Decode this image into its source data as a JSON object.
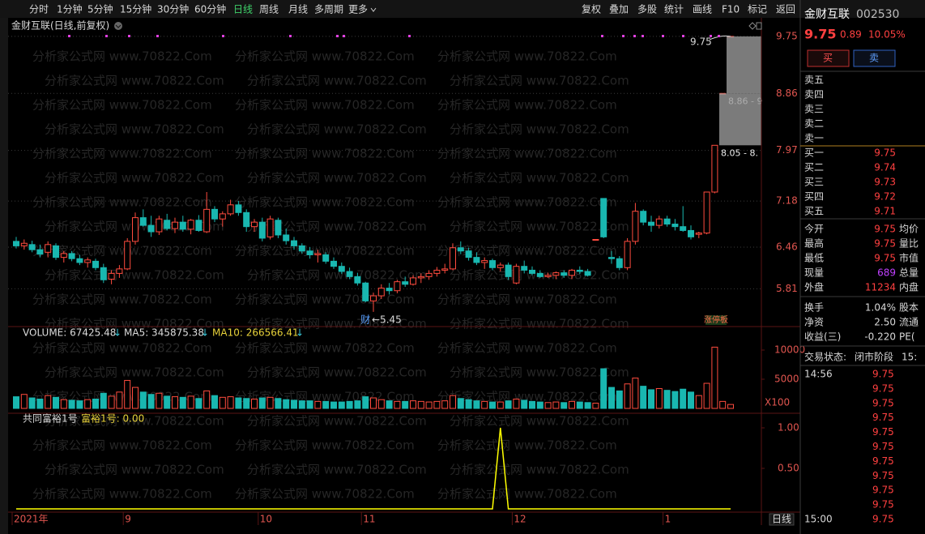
{
  "toolbar": {
    "periods": [
      "分时",
      "1分钟",
      "5分钟",
      "15分钟",
      "30分钟",
      "60分钟",
      "日线",
      "周线",
      "月线",
      "多周期",
      "更多"
    ],
    "tools": [
      "复权",
      "叠加",
      "多股",
      "统计",
      "画线",
      "F10",
      "标记",
      "返回"
    ]
  },
  "watermark": "分析家公式网 www.70822.Com",
  "chart_data": [
    {
      "type": "candlestick",
      "title": "金财互联(日线,前复权)",
      "ylim": [
        5.22,
        10.04
      ],
      "yticks": [
        9.75,
        8.86,
        7.97,
        7.18,
        6.46,
        5.81
      ],
      "grid": true,
      "up_color": "#ff4b3e",
      "down_color": "#19b7b0",
      "categories": [
        "2021年",
        null,
        null,
        null,
        null,
        null,
        null,
        null,
        null,
        null,
        null,
        null,
        null,
        null,
        "9",
        null,
        null,
        null,
        null,
        null,
        null,
        null,
        null,
        null,
        null,
        null,
        null,
        null,
        null,
        null,
        null,
        "10",
        null,
        null,
        null,
        null,
        null,
        null,
        null,
        null,
        null,
        null,
        null,
        null,
        "11",
        null,
        null,
        null,
        null,
        null,
        null,
        null,
        null,
        null,
        null,
        null,
        null,
        null,
        null,
        null,
        null,
        null,
        null,
        "12",
        null,
        null,
        null,
        null,
        null,
        null,
        null,
        null,
        null,
        null,
        null,
        null,
        null,
        null,
        null,
        null,
        null,
        null,
        "1",
        null,
        null,
        null,
        null,
        null,
        null,
        null,
        null
      ],
      "candles": [
        [
          6.55,
          6.62,
          6.44,
          6.48
        ],
        [
          6.48,
          6.58,
          6.42,
          6.52
        ],
        [
          6.5,
          6.56,
          6.38,
          6.42
        ],
        [
          6.42,
          6.5,
          6.3,
          6.35
        ],
        [
          6.38,
          6.55,
          6.3,
          6.5
        ],
        [
          6.48,
          6.52,
          6.26,
          6.3
        ],
        [
          6.3,
          6.4,
          6.22,
          6.36
        ],
        [
          6.36,
          6.4,
          6.24,
          6.28
        ],
        [
          6.28,
          6.34,
          6.18,
          6.22
        ],
        [
          6.22,
          6.3,
          6.14,
          6.26
        ],
        [
          6.24,
          6.28,
          6.1,
          6.14
        ],
        [
          6.14,
          6.2,
          5.9,
          5.95
        ],
        [
          5.96,
          6.1,
          5.88,
          6.05
        ],
        [
          6.05,
          6.18,
          5.98,
          6.12
        ],
        [
          6.12,
          6.6,
          6.1,
          6.55
        ],
        [
          6.55,
          7.0,
          6.5,
          6.92
        ],
        [
          6.92,
          7.05,
          6.78,
          6.8
        ],
        [
          6.8,
          6.95,
          6.62,
          6.7
        ],
        [
          6.7,
          6.95,
          6.65,
          6.9
        ],
        [
          6.88,
          6.98,
          6.72,
          6.75
        ],
        [
          6.75,
          6.92,
          6.68,
          6.85
        ],
        [
          6.85,
          6.95,
          6.7,
          6.74
        ],
        [
          6.74,
          6.9,
          6.66,
          6.88
        ],
        [
          6.88,
          6.96,
          6.7,
          6.72
        ],
        [
          6.7,
          7.32,
          6.68,
          7.05
        ],
        [
          7.05,
          7.1,
          6.85,
          6.9
        ],
        [
          6.9,
          7.02,
          6.78,
          6.98
        ],
        [
          6.98,
          7.2,
          6.95,
          7.12
        ],
        [
          7.12,
          7.18,
          6.95,
          7.0
        ],
        [
          7.0,
          7.05,
          6.7,
          6.78
        ],
        [
          6.78,
          6.9,
          6.7,
          6.85
        ],
        [
          6.85,
          6.92,
          6.55,
          6.6
        ],
        [
          6.62,
          6.95,
          6.58,
          6.9
        ],
        [
          6.88,
          6.92,
          6.6,
          6.65
        ],
        [
          6.65,
          6.75,
          6.5,
          6.56
        ],
        [
          6.56,
          6.62,
          6.42,
          6.48
        ],
        [
          6.48,
          6.52,
          6.36,
          6.4
        ],
        [
          6.4,
          6.46,
          6.28,
          6.34
        ],
        [
          6.34,
          6.42,
          6.22,
          6.36
        ],
        [
          6.34,
          6.38,
          6.2,
          6.24
        ],
        [
          6.24,
          6.3,
          6.12,
          6.16
        ],
        [
          6.16,
          6.22,
          6.04,
          6.08
        ],
        [
          6.08,
          6.14,
          5.96,
          6.0
        ],
        [
          6.0,
          6.06,
          5.86,
          5.9
        ],
        [
          5.9,
          5.92,
          5.6,
          5.62
        ],
        [
          5.62,
          5.75,
          5.45,
          5.7
        ],
        [
          5.7,
          5.88,
          5.65,
          5.82
        ],
        [
          5.82,
          5.9,
          5.72,
          5.78
        ],
        [
          5.78,
          5.95,
          5.74,
          5.92
        ],
        [
          5.92,
          6.0,
          5.84,
          5.88
        ],
        [
          5.88,
          6.02,
          5.86,
          5.98
        ],
        [
          5.98,
          6.05,
          5.9,
          6.0
        ],
        [
          6.0,
          6.1,
          5.95,
          6.05
        ],
        [
          6.05,
          6.15,
          6.0,
          6.1
        ],
        [
          6.1,
          6.2,
          6.05,
          6.12
        ],
        [
          6.12,
          6.52,
          6.1,
          6.45
        ],
        [
          6.45,
          6.55,
          6.35,
          6.4
        ],
        [
          6.4,
          6.45,
          6.25,
          6.3
        ],
        [
          6.3,
          6.38,
          6.18,
          6.22
        ],
        [
          6.22,
          6.3,
          6.12,
          6.25
        ],
        [
          6.25,
          6.28,
          6.1,
          6.14
        ],
        [
          6.14,
          6.22,
          6.08,
          6.18
        ],
        [
          6.18,
          6.22,
          5.95,
          6.0
        ],
        [
          5.9,
          6.2,
          5.88,
          6.16
        ],
        [
          6.16,
          6.25,
          6.05,
          6.1
        ],
        [
          6.1,
          6.16,
          6.02,
          6.05
        ],
        [
          6.05,
          6.1,
          5.98,
          6.0
        ],
        [
          6.0,
          6.06,
          5.98,
          6.02
        ],
        [
          6.02,
          6.08,
          5.96,
          6.06
        ],
        [
          6.06,
          6.1,
          5.98,
          6.02
        ],
        [
          6.02,
          6.12,
          5.96,
          6.1
        ],
        [
          6.1,
          6.16,
          6.04,
          6.08
        ],
        [
          6.08,
          6.12,
          6.0,
          6.02
        ],
        [
          6.58,
          6.58,
          6.58,
          6.58
        ],
        [
          7.22,
          7.22,
          6.6,
          6.62
        ],
        [
          6.3,
          6.4,
          6.2,
          6.28
        ],
        [
          6.28,
          6.32,
          6.1,
          6.14
        ],
        [
          6.14,
          6.6,
          6.1,
          6.55
        ],
        [
          6.55,
          7.15,
          6.5,
          7.02
        ],
        [
          7.02,
          7.05,
          6.8,
          6.85
        ],
        [
          6.85,
          6.95,
          6.7,
          6.8
        ],
        [
          6.8,
          6.95,
          6.75,
          6.9
        ],
        [
          6.9,
          6.95,
          6.78,
          6.82
        ],
        [
          6.82,
          6.9,
          6.72,
          6.78
        ],
        [
          6.78,
          7.1,
          6.7,
          6.72
        ],
        [
          6.72,
          6.8,
          6.58,
          6.62
        ],
        [
          6.66,
          6.7,
          6.6,
          6.68
        ],
        [
          6.68,
          7.32,
          6.66,
          7.32
        ],
        [
          7.32,
          8.05,
          7.3,
          8.05
        ],
        [
          8.86,
          8.86,
          8.86,
          8.86
        ],
        [
          9.75,
          9.75,
          9.75,
          9.75
        ]
      ],
      "high_label": "9.75",
      "low_label": "←5.45",
      "event_label": "财",
      "badge": "涨停板",
      "gaps": [
        {
          "from": 8.86,
          "to": 9.75,
          "label": "8.86 - 9"
        },
        {
          "from": 8.05,
          "to": 8.86,
          "label": "8.05 - 8."
        }
      ]
    },
    {
      "type": "volume",
      "ylim": [
        0,
        13750
      ],
      "yticks": [
        10000,
        5000
      ],
      "unit": "X100",
      "header": [
        "VOLUME: 67425.48",
        "MA5: 345875.38",
        "MA10: 266566.41"
      ],
      "arrow": "↓",
      "values": [
        2000,
        2400,
        1800,
        1600,
        2200,
        1900,
        1500,
        1400,
        1300,
        1500,
        1600,
        2600,
        2100,
        2800,
        4800,
        3600,
        2800,
        2400,
        2600,
        2100,
        2000,
        1900,
        2100,
        1700,
        3000,
        2200,
        1900,
        2000,
        1800,
        1700,
        1600,
        1800,
        1900,
        1700,
        1500,
        1400,
        1300,
        1300,
        1200,
        1200,
        1100,
        1100,
        1200,
        1300,
        2000,
        1800,
        1500,
        1300,
        1200,
        1200,
        1300,
        1200,
        1100,
        1200,
        1300,
        2200,
        1700,
        1500,
        1300,
        1200,
        1100,
        1100,
        1300,
        1600,
        1400,
        1200,
        1100,
        1000,
        1100,
        1000,
        1200,
        1100,
        1000,
        900,
        6800,
        3600,
        3000,
        4200,
        5200,
        3800,
        3200,
        3400,
        3100,
        2900,
        3300,
        2800,
        2200,
        4300,
        10500,
        1200,
        674
      ]
    },
    {
      "type": "line",
      "title": "共同富裕1号",
      "value_text": "富裕1号: 0.00",
      "color": "#ffff00",
      "ylim": [
        0,
        1.16
      ],
      "yticks": [
        {
          "value": 1,
          "label": "1.00"
        },
        {
          "value": 0.5,
          "label": "0.50"
        }
      ],
      "values": [
        0,
        0,
        0,
        0,
        0,
        0,
        0,
        0,
        0,
        0,
        0,
        0,
        0,
        0,
        0,
        0,
        0,
        0,
        0,
        0,
        0,
        0,
        0,
        0,
        0,
        0,
        0,
        0,
        0,
        0,
        0,
        0,
        0,
        0,
        0,
        0,
        0,
        0,
        0,
        0,
        0,
        0,
        0,
        0,
        0,
        0,
        0,
        0,
        0,
        0,
        0,
        0,
        0,
        0,
        0,
        0,
        0,
        0,
        0,
        0,
        0,
        1,
        0,
        0,
        0,
        0,
        0,
        0,
        0,
        0,
        0,
        0,
        0,
        0,
        0,
        0,
        0,
        0,
        0,
        0,
        0,
        0,
        0,
        0,
        0,
        0,
        0,
        0,
        0,
        0,
        0
      ]
    }
  ],
  "period_button": "日线",
  "quote": {
    "name": "金财互联",
    "code": "002530",
    "price": "9.75",
    "change": "0.89",
    "change_pct": "10.05%",
    "buy": "买",
    "sell": "卖",
    "asks": [
      "卖五",
      "卖四",
      "卖三",
      "卖二",
      "卖一"
    ],
    "bids": [
      [
        "买一",
        "9.75"
      ],
      [
        "买二",
        "9.74"
      ],
      [
        "买三",
        "9.73"
      ],
      [
        "买四",
        "9.72"
      ],
      [
        "买五",
        "9.71"
      ]
    ],
    "stats": [
      [
        "今开",
        "9.75",
        "均价"
      ],
      [
        "最高",
        "9.75",
        "量比"
      ],
      [
        "最低",
        "9.75",
        "市值"
      ],
      [
        "现量",
        "689",
        "总量"
      ],
      [
        "外盘",
        "11234",
        "内盘"
      ]
    ],
    "stats2": [
      [
        "换手",
        "1.04%",
        "股本"
      ],
      [
        "净资",
        "2.50",
        "流通"
      ],
      [
        "收益(三)",
        "-0.220",
        "PE("
      ]
    ],
    "status": [
      "交易状态:",
      "闭市阶段",
      "15:"
    ],
    "ticks": [
      [
        "14:56",
        "9.75"
      ],
      [
        null,
        "9.75"
      ],
      [
        null,
        "9.75"
      ],
      [
        null,
        "9.75"
      ],
      [
        null,
        "9.75"
      ],
      [
        null,
        "9.75"
      ],
      [
        null,
        "9.75"
      ],
      [
        null,
        "9.75"
      ],
      [
        null,
        "9.75"
      ],
      [
        null,
        "9.75"
      ],
      [
        "15:00",
        "9.75"
      ]
    ]
  }
}
